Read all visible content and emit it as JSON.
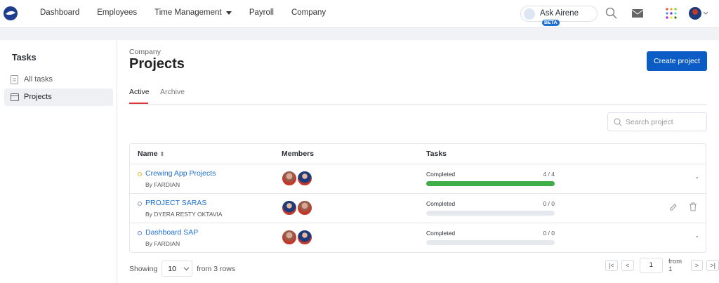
{
  "nav": {
    "items": [
      "Dashboard",
      "Employees",
      "Time Management",
      "Payroll",
      "Company"
    ],
    "assistant": "Ask Airene",
    "badge": "BETA"
  },
  "sidebar": {
    "title": "Tasks",
    "items": [
      "All tasks",
      "Projects"
    ]
  },
  "header": {
    "breadcrumb": "Company",
    "title": "Projects",
    "button": "Create project"
  },
  "tabs": [
    "Active",
    "Archive"
  ],
  "search_placeholder": "Search project",
  "table": {
    "columns": [
      "Name",
      "Members",
      "Tasks"
    ],
    "rows": [
      {
        "name": "Crewing App Projects",
        "by": "By FARDIAN",
        "dot_color": "#f0b429",
        "status": "Completed",
        "completed": 4,
        "total": 4,
        "progress_label": "4 / 4",
        "trailing": "-"
      },
      {
        "name": "PROJECT SARAS",
        "by": "By DYERA RESTY OKTAVIA",
        "dot_color": "#8a94a6",
        "status": "Completed",
        "completed": 0,
        "total": 0,
        "progress_label": "0 / 0"
      },
      {
        "name": "Dashboard SAP",
        "by": "By FARDIAN",
        "dot_color": "#5b7bd5",
        "status": "Completed",
        "completed": 0,
        "total": 0,
        "progress_label": "0 / 0",
        "trailing": "-"
      }
    ]
  },
  "footer": {
    "showing": "Showing",
    "page_size": "10",
    "from_rows": "from 3 rows",
    "page": "1",
    "from_pages": "from 1"
  }
}
